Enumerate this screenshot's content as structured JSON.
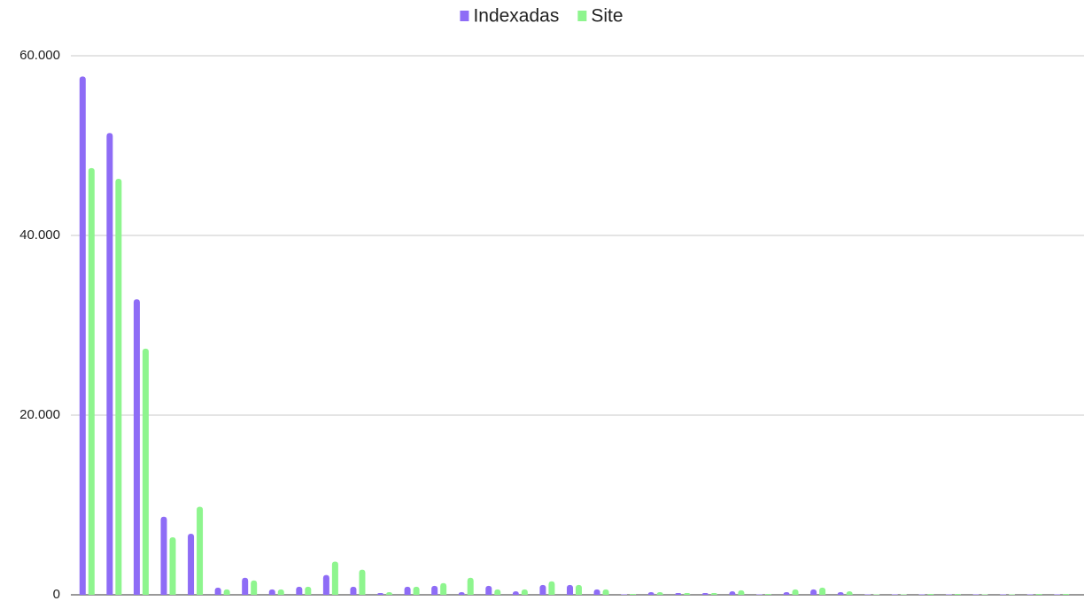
{
  "chart_data": {
    "type": "bar",
    "categories": [
      null,
      null,
      null,
      null,
      null,
      null,
      null,
      null,
      null,
      null,
      null,
      null,
      null,
      null,
      null,
      null,
      null,
      null,
      null,
      null,
      null,
      null,
      null,
      null,
      null,
      null,
      null,
      null,
      null,
      null,
      null,
      null,
      null,
      null,
      null,
      null,
      null
    ],
    "series": [
      {
        "name": "Indexadas",
        "color": "#8e6cf6",
        "values": [
          57700,
          51400,
          32900,
          8700,
          6800,
          800,
          1900,
          600,
          900,
          2200,
          900,
          200,
          900,
          1000,
          300,
          1000,
          400,
          1100,
          1100,
          600,
          50,
          300,
          200,
          200,
          400,
          50,
          300,
          600,
          300,
          50,
          50,
          50,
          50,
          50,
          50,
          50,
          50
        ]
      },
      {
        "name": "Site",
        "color": "#8ef58e",
        "values": [
          47500,
          46300,
          27400,
          6400,
          9800,
          600,
          1600,
          600,
          900,
          3700,
          2800,
          300,
          900,
          1300,
          1900,
          600,
          600,
          1500,
          1100,
          600,
          100,
          300,
          200,
          200,
          500,
          100,
          600,
          800,
          400,
          50,
          50,
          100,
          100,
          50,
          50,
          100,
          100
        ]
      }
    ],
    "ylim": [
      0,
      60000
    ],
    "yticks": [
      0,
      {
        "value": 20000,
        "label": "20.000"
      },
      {
        "value": 40000,
        "label": "40.000"
      },
      {
        "value": 60000,
        "label": "60.000"
      }
    ],
    "grid": true,
    "legend": "top"
  }
}
